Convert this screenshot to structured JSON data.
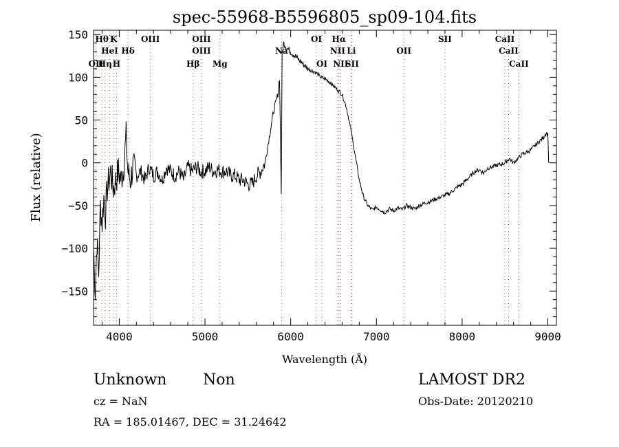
{
  "chart_data": {
    "type": "line",
    "title": "spec-55968-B5596805_sp09-104.fits",
    "xlabel": "Wavelength (Å)",
    "ylabel": "Flux (relative)",
    "xlim": [
      3700,
      9100
    ],
    "ylim": [
      -190,
      155
    ],
    "x_ticks": [
      4000,
      5000,
      6000,
      7000,
      8000,
      9000
    ],
    "x_tick_labels": [
      "4000",
      "5000",
      "6000",
      "7000",
      "8000",
      "9000"
    ],
    "y_ticks": [
      -150,
      -100,
      -50,
      0,
      50,
      100,
      150
    ],
    "y_tick_labels": [
      "−150",
      "−100",
      "−50",
      "0",
      "50",
      "100",
      "150"
    ],
    "series": [
      {
        "x": [
          3700,
          3720,
          3740,
          3760,
          3780,
          3800,
          3820,
          3840,
          3860,
          3880,
          3900,
          3930,
          3960,
          3990,
          4020,
          4050,
          4080,
          4100,
          4130,
          4160,
          4200,
          4250,
          4300,
          4350,
          4400,
          4450,
          4500,
          4550,
          4600,
          4650,
          4700,
          4750,
          4800,
          4850,
          4900,
          4950,
          5000,
          5050,
          5100,
          5150,
          5200,
          5250,
          5300,
          5350,
          5400,
          5450,
          5500,
          5550,
          5600,
          5650,
          5700,
          5750,
          5800,
          5850,
          5870,
          5890,
          5900,
          5920,
          5950,
          6000,
          6050,
          6100,
          6150,
          6200,
          6250,
          6300,
          6350,
          6400,
          6450,
          6500,
          6550,
          6600,
          6650,
          6700,
          6750,
          6800,
          6850,
          6900,
          6950,
          7000,
          7050,
          7100,
          7150,
          7200,
          7250,
          7300,
          7350,
          7400,
          7450,
          7500,
          7550,
          7600,
          7650,
          7700,
          7750,
          7800,
          7850,
          7900,
          7950,
          8000,
          8050,
          8100,
          8150,
          8200,
          8250,
          8300,
          8350,
          8400,
          8450,
          8500,
          8550,
          8600,
          8650,
          8700,
          8750,
          8800,
          8850,
          8900,
          8950,
          8980,
          9000,
          9010
        ],
        "y": [
          -100,
          -150,
          -90,
          -130,
          -50,
          -70,
          -40,
          -60,
          -30,
          -20,
          -10,
          -30,
          -20,
          -10,
          -20,
          -5,
          30,
          -10,
          -20,
          -5,
          -15,
          -10,
          -20,
          -5,
          -15,
          -10,
          -20,
          -5,
          -10,
          -15,
          -10,
          -20,
          -5,
          -10,
          -5,
          -10,
          -10,
          -5,
          -10,
          -8,
          -10,
          -10,
          -15,
          -15,
          -20,
          -20,
          -25,
          -25,
          -15,
          -10,
          0,
          30,
          60,
          80,
          100,
          -35,
          130,
          140,
          135,
          130,
          125,
          120,
          115,
          110,
          108,
          105,
          100,
          98,
          95,
          90,
          85,
          80,
          65,
          40,
          10,
          -20,
          -40,
          -50,
          -55,
          -52,
          -55,
          -58,
          -54,
          -56,
          -53,
          -55,
          -50,
          -52,
          -54,
          -50,
          -48,
          -46,
          -44,
          -42,
          -40,
          -38,
          -36,
          -32,
          -28,
          -25,
          -20,
          -15,
          -10,
          -8,
          -12,
          -6,
          -5,
          -3,
          -2,
          0,
          5,
          0,
          5,
          10,
          12,
          15,
          20,
          25,
          30,
          35,
          33,
          0
        ]
      }
    ],
    "line_markers": [
      {
        "label": "Hθ",
        "x": 3798,
        "row": 0
      },
      {
        "label": "K",
        "x": 3934,
        "row": 0
      },
      {
        "label": "OIII",
        "x": 4363,
        "row": 0
      },
      {
        "label": "OIII",
        "x": 4959,
        "row": 0
      },
      {
        "label": "OI",
        "x": 6300,
        "row": 0
      },
      {
        "label": "Hα",
        "x": 6563,
        "row": 0
      },
      {
        "label": "SII",
        "x": 7800,
        "row": 0
      },
      {
        "label": "CaII",
        "x": 8498,
        "row": 0
      },
      {
        "label": "HeI",
        "x": 3889,
        "row": 1
      },
      {
        "label": "Hδ",
        "x": 4102,
        "row": 1
      },
      {
        "label": "OIII",
        "x": 4959,
        "row": 1
      },
      {
        "label": "Na",
        "x": 5893,
        "row": 1
      },
      {
        "label": "NII",
        "x": 6548,
        "row": 1
      },
      {
        "label": "Li",
        "x": 6708,
        "row": 1
      },
      {
        "label": "OII",
        "x": 7320,
        "row": 1
      },
      {
        "label": "CaII",
        "x": 8542,
        "row": 1
      },
      {
        "label": "OII",
        "x": 3727,
        "row": 2
      },
      {
        "label": "Hη",
        "x": 3835,
        "row": 2
      },
      {
        "label": "H",
        "x": 3968,
        "row": 2
      },
      {
        "label": "Hβ",
        "x": 4861,
        "row": 2
      },
      {
        "label": "Mg",
        "x": 5175,
        "row": 2
      },
      {
        "label": "OI",
        "x": 6364,
        "row": 2
      },
      {
        "label": "NII",
        "x": 6583,
        "row": 2
      },
      {
        "label": "SII",
        "x": 6716,
        "row": 2
      },
      {
        "label": "CaII",
        "x": 8662,
        "row": 2
      }
    ],
    "grid": false,
    "legend": "none"
  },
  "info": {
    "class": "Unknown",
    "subclass": "Non",
    "cz": "cz = NaN",
    "coords": "RA = 185.01467, DEC =  31.24642",
    "survey": "LAMOST DR2",
    "obs_date": "Obs-Date: 20120210"
  }
}
